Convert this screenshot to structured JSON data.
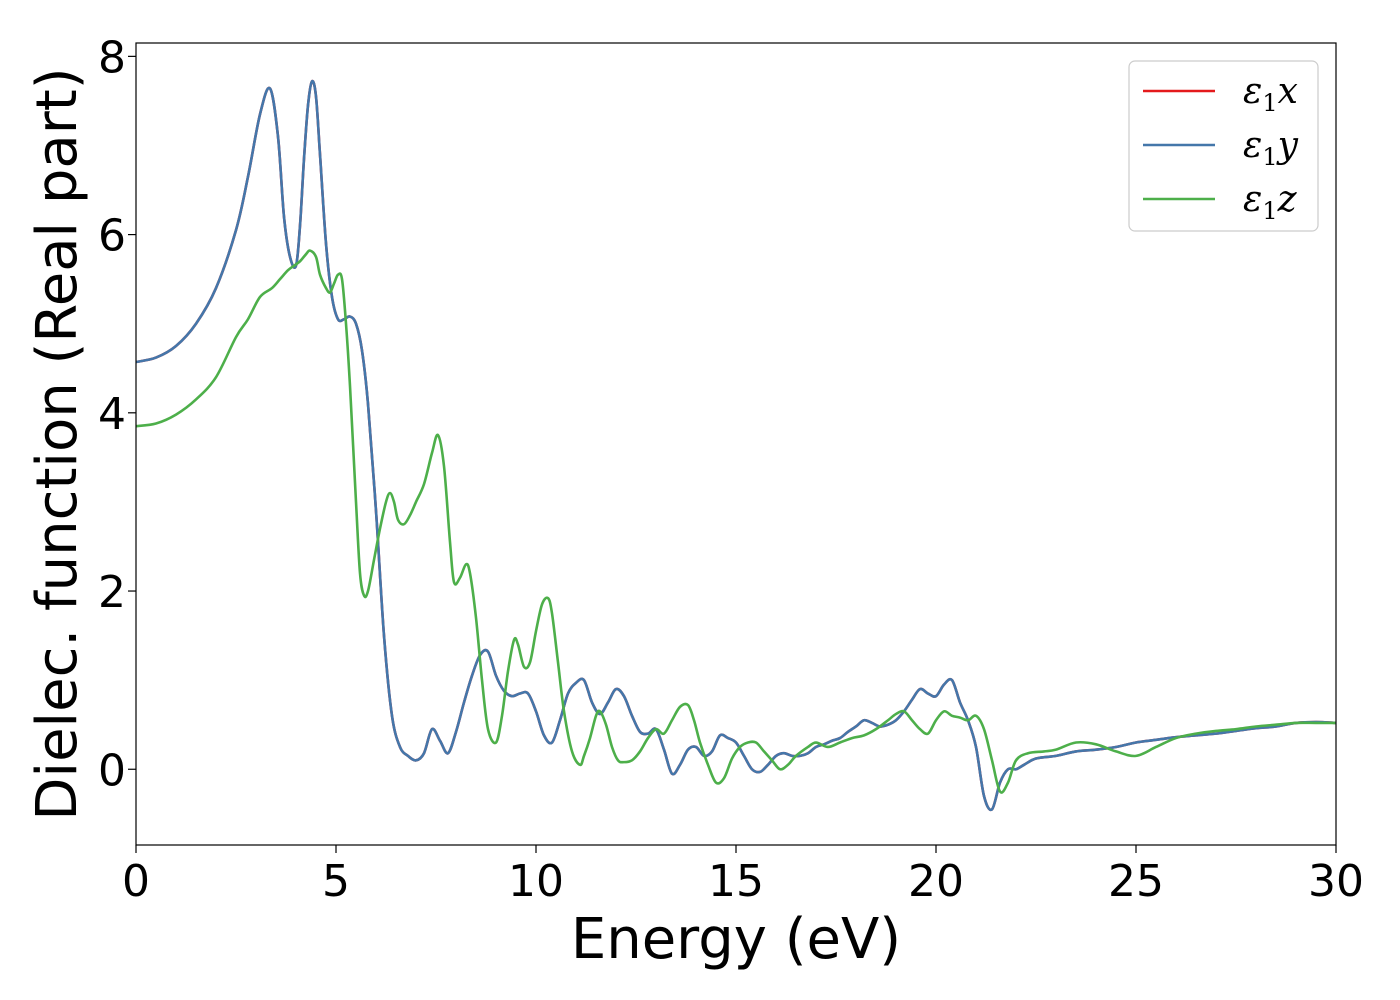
{
  "chart_data": {
    "type": "line",
    "title": "",
    "xlabel": "Energy (eV)",
    "ylabel": "Dielec. function (Real part)",
    "xlim": [
      0,
      30
    ],
    "ylim": [
      -0.85,
      8.15
    ],
    "xticks": [
      0,
      5,
      10,
      15,
      20,
      25,
      30
    ],
    "yticks": [
      0,
      2,
      4,
      6,
      8
    ],
    "grid": false,
    "legend_position": "top-right",
    "series": [
      {
        "name": "ε₁x",
        "legend_main": "ε",
        "legend_sub": "1",
        "legend_var": "x",
        "color": "#e41a1c",
        "x": [
          0,
          0.5,
          1,
          1.5,
          2,
          2.5,
          2.8,
          3.1,
          3.35,
          3.55,
          3.7,
          3.85,
          4.0,
          4.1,
          4.2,
          4.3,
          4.4,
          4.5,
          4.6,
          4.75,
          4.9,
          5.05,
          5.2,
          5.35,
          5.5,
          5.65,
          5.8,
          6.0,
          6.2,
          6.4,
          6.6,
          6.8,
          7.0,
          7.2,
          7.4,
          7.6,
          7.8,
          8.0,
          8.2,
          8.4,
          8.6,
          8.8,
          9.0,
          9.2,
          9.4,
          9.6,
          9.8,
          10.0,
          10.2,
          10.4,
          10.6,
          10.8,
          11.0,
          11.2,
          11.4,
          11.6,
          11.8,
          12.0,
          12.2,
          12.4,
          12.6,
          12.8,
          13.0,
          13.2,
          13.4,
          13.6,
          13.8,
          14.0,
          14.2,
          14.4,
          14.6,
          14.8,
          15.0,
          15.2,
          15.4,
          15.6,
          15.8,
          16.0,
          16.2,
          16.4,
          16.6,
          16.8,
          17.0,
          17.2,
          17.4,
          17.6,
          17.8,
          18.0,
          18.2,
          18.4,
          18.6,
          18.8,
          19.0,
          19.2,
          19.4,
          19.6,
          19.8,
          20.0,
          20.2,
          20.4,
          20.6,
          20.8,
          21.0,
          21.2,
          21.4,
          21.6,
          21.8,
          22.0,
          22.2,
          22.5,
          23.0,
          23.5,
          24.0,
          24.5,
          25.0,
          25.5,
          26.0,
          26.5,
          27.0,
          27.5,
          28.0,
          28.5,
          29.0,
          29.5,
          30.0
        ],
        "y": [
          4.57,
          4.62,
          4.75,
          5.0,
          5.4,
          6.05,
          6.65,
          7.35,
          7.64,
          7.1,
          6.2,
          5.75,
          5.65,
          6.1,
          6.85,
          7.45,
          7.72,
          7.55,
          6.9,
          5.9,
          5.3,
          5.05,
          5.05,
          5.08,
          5.0,
          4.7,
          4.1,
          2.9,
          1.5,
          0.6,
          0.25,
          0.15,
          0.1,
          0.18,
          0.45,
          0.32,
          0.18,
          0.42,
          0.75,
          1.05,
          1.28,
          1.32,
          1.05,
          0.88,
          0.82,
          0.85,
          0.85,
          0.65,
          0.38,
          0.3,
          0.55,
          0.85,
          0.97,
          1.0,
          0.75,
          0.62,
          0.75,
          0.9,
          0.82,
          0.6,
          0.42,
          0.4,
          0.45,
          0.22,
          -0.05,
          0.05,
          0.22,
          0.25,
          0.15,
          0.2,
          0.38,
          0.35,
          0.3,
          0.15,
          0.0,
          -0.03,
          0.05,
          0.15,
          0.18,
          0.15,
          0.15,
          0.18,
          0.25,
          0.28,
          0.32,
          0.35,
          0.42,
          0.48,
          0.55,
          0.52,
          0.48,
          0.5,
          0.55,
          0.65,
          0.78,
          0.9,
          0.85,
          0.82,
          0.95,
          1.0,
          0.75,
          0.55,
          0.25,
          -0.3,
          -0.45,
          -0.15,
          0.0,
          0.0,
          0.05,
          0.12,
          0.15,
          0.2,
          0.22,
          0.25,
          0.3,
          0.33,
          0.36,
          0.38,
          0.4,
          0.43,
          0.46,
          0.48,
          0.52,
          0.53,
          0.52
        ]
      },
      {
        "name": "ε₁y",
        "legend_main": "ε",
        "legend_sub": "1",
        "legend_var": "y",
        "color": "#4477aa",
        "x": [
          0,
          0.5,
          1,
          1.5,
          2,
          2.5,
          2.8,
          3.1,
          3.35,
          3.55,
          3.7,
          3.85,
          4.0,
          4.1,
          4.2,
          4.3,
          4.4,
          4.5,
          4.6,
          4.75,
          4.9,
          5.05,
          5.2,
          5.35,
          5.5,
          5.65,
          5.8,
          6.0,
          6.2,
          6.4,
          6.6,
          6.8,
          7.0,
          7.2,
          7.4,
          7.6,
          7.8,
          8.0,
          8.2,
          8.4,
          8.6,
          8.8,
          9.0,
          9.2,
          9.4,
          9.6,
          9.8,
          10.0,
          10.2,
          10.4,
          10.6,
          10.8,
          11.0,
          11.2,
          11.4,
          11.6,
          11.8,
          12.0,
          12.2,
          12.4,
          12.6,
          12.8,
          13.0,
          13.2,
          13.4,
          13.6,
          13.8,
          14.0,
          14.2,
          14.4,
          14.6,
          14.8,
          15.0,
          15.2,
          15.4,
          15.6,
          15.8,
          16.0,
          16.2,
          16.4,
          16.6,
          16.8,
          17.0,
          17.2,
          17.4,
          17.6,
          17.8,
          18.0,
          18.2,
          18.4,
          18.6,
          18.8,
          19.0,
          19.2,
          19.4,
          19.6,
          19.8,
          20.0,
          20.2,
          20.4,
          20.6,
          20.8,
          21.0,
          21.2,
          21.4,
          21.6,
          21.8,
          22.0,
          22.2,
          22.5,
          23.0,
          23.5,
          24.0,
          24.5,
          25.0,
          25.5,
          26.0,
          26.5,
          27.0,
          27.5,
          28.0,
          28.5,
          29.0,
          29.5,
          30.0
        ],
        "y": [
          4.57,
          4.62,
          4.75,
          5.0,
          5.4,
          6.05,
          6.65,
          7.35,
          7.64,
          7.1,
          6.2,
          5.75,
          5.65,
          6.1,
          6.85,
          7.45,
          7.72,
          7.55,
          6.9,
          5.9,
          5.3,
          5.05,
          5.05,
          5.08,
          5.0,
          4.7,
          4.1,
          2.9,
          1.5,
          0.6,
          0.25,
          0.15,
          0.1,
          0.18,
          0.45,
          0.32,
          0.18,
          0.42,
          0.75,
          1.05,
          1.28,
          1.32,
          1.05,
          0.88,
          0.82,
          0.85,
          0.85,
          0.65,
          0.38,
          0.3,
          0.55,
          0.85,
          0.97,
          1.0,
          0.75,
          0.62,
          0.75,
          0.9,
          0.82,
          0.6,
          0.42,
          0.4,
          0.45,
          0.22,
          -0.05,
          0.05,
          0.22,
          0.25,
          0.15,
          0.2,
          0.38,
          0.35,
          0.3,
          0.15,
          0.0,
          -0.03,
          0.05,
          0.15,
          0.18,
          0.15,
          0.15,
          0.18,
          0.25,
          0.28,
          0.32,
          0.35,
          0.42,
          0.48,
          0.55,
          0.52,
          0.48,
          0.5,
          0.55,
          0.65,
          0.78,
          0.9,
          0.85,
          0.82,
          0.95,
          1.0,
          0.75,
          0.55,
          0.25,
          -0.3,
          -0.45,
          -0.15,
          0.0,
          0.0,
          0.05,
          0.12,
          0.15,
          0.2,
          0.22,
          0.25,
          0.3,
          0.33,
          0.36,
          0.38,
          0.4,
          0.43,
          0.46,
          0.48,
          0.52,
          0.53,
          0.52
        ]
      },
      {
        "name": "ε₁z",
        "legend_main": "ε",
        "legend_sub": "1",
        "legend_var": "z",
        "color": "#4daf4a",
        "x": [
          0,
          0.5,
          1,
          1.5,
          2,
          2.5,
          2.8,
          3.1,
          3.4,
          3.6,
          3.8,
          3.95,
          4.1,
          4.25,
          4.35,
          4.5,
          4.6,
          4.75,
          4.85,
          4.95,
          5.05,
          5.15,
          5.25,
          5.35,
          5.5,
          5.6,
          5.7,
          5.8,
          5.95,
          6.1,
          6.25,
          6.35,
          6.45,
          6.55,
          6.7,
          6.85,
          7.0,
          7.2,
          7.4,
          7.55,
          7.7,
          7.85,
          7.95,
          8.1,
          8.25,
          8.35,
          8.5,
          8.65,
          8.8,
          9.0,
          9.15,
          9.3,
          9.45,
          9.55,
          9.7,
          9.85,
          10.0,
          10.15,
          10.3,
          10.4,
          10.55,
          10.7,
          10.9,
          11.1,
          11.2,
          11.35,
          11.5,
          11.6,
          11.75,
          11.9,
          12.05,
          12.2,
          12.4,
          12.6,
          12.8,
          13.0,
          13.2,
          13.4,
          13.6,
          13.8,
          13.95,
          14.1,
          14.3,
          14.5,
          14.7,
          14.9,
          15.1,
          15.3,
          15.5,
          15.7,
          15.9,
          16.1,
          16.3,
          16.5,
          16.8,
          17.0,
          17.3,
          17.6,
          17.9,
          18.2,
          18.5,
          18.8,
          19.0,
          19.2,
          19.4,
          19.6,
          19.8,
          20.0,
          20.2,
          20.4,
          20.6,
          20.8,
          21.0,
          21.2,
          21.4,
          21.6,
          21.8,
          22.0,
          22.3,
          22.7,
          23.0,
          23.5,
          24.0,
          24.5,
          25.0,
          25.5,
          26.0,
          26.5,
          27.0,
          27.5,
          28.0,
          28.5,
          29.0,
          29.5,
          30.0
        ],
        "y": [
          3.85,
          3.88,
          3.98,
          4.15,
          4.4,
          4.85,
          5.05,
          5.3,
          5.4,
          5.5,
          5.6,
          5.65,
          5.7,
          5.78,
          5.82,
          5.75,
          5.55,
          5.4,
          5.35,
          5.45,
          5.55,
          5.5,
          5.0,
          4.3,
          3.0,
          2.2,
          1.95,
          2.0,
          2.35,
          2.7,
          3.0,
          3.1,
          3.0,
          2.8,
          2.75,
          2.85,
          3.0,
          3.2,
          3.55,
          3.75,
          3.4,
          2.55,
          2.1,
          2.15,
          2.3,
          2.2,
          1.7,
          1.0,
          0.45,
          0.3,
          0.6,
          1.1,
          1.45,
          1.4,
          1.15,
          1.2,
          1.55,
          1.85,
          1.92,
          1.75,
          1.2,
          0.65,
          0.2,
          0.05,
          0.15,
          0.35,
          0.6,
          0.65,
          0.5,
          0.25,
          0.1,
          0.08,
          0.1,
          0.2,
          0.35,
          0.45,
          0.4,
          0.55,
          0.7,
          0.72,
          0.55,
          0.3,
          0.05,
          -0.15,
          -0.1,
          0.12,
          0.25,
          0.3,
          0.3,
          0.2,
          0.1,
          0.0,
          0.05,
          0.15,
          0.25,
          0.3,
          0.25,
          0.3,
          0.35,
          0.38,
          0.45,
          0.55,
          0.62,
          0.65,
          0.55,
          0.45,
          0.4,
          0.55,
          0.65,
          0.6,
          0.58,
          0.55,
          0.6,
          0.45,
          0.1,
          -0.25,
          -0.15,
          0.1,
          0.18,
          0.2,
          0.22,
          0.3,
          0.28,
          0.2,
          0.15,
          0.25,
          0.35,
          0.4,
          0.43,
          0.45,
          0.48,
          0.5,
          0.52,
          0.52,
          0.52
        ]
      }
    ]
  }
}
